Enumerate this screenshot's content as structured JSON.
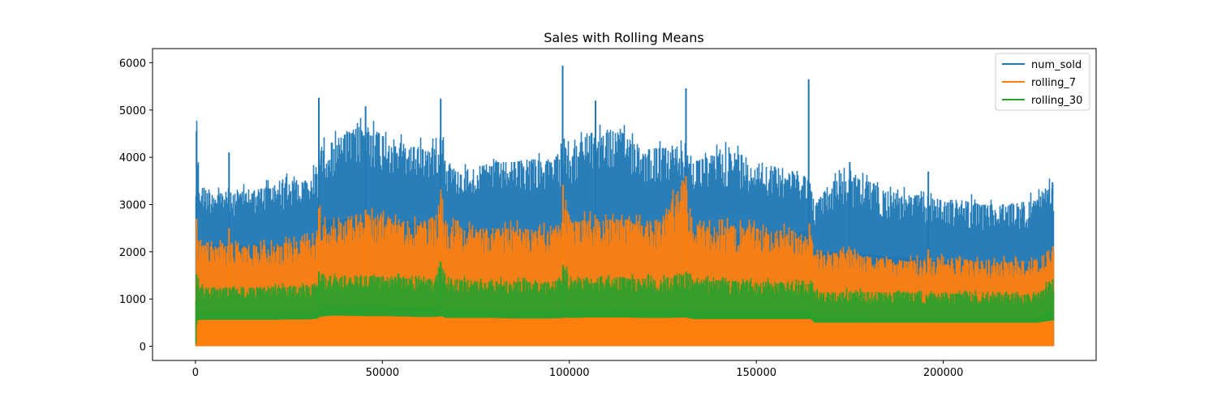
{
  "chart_data": {
    "type": "line",
    "title": "Sales with Rolling Means",
    "xlabel": "",
    "ylabel": "",
    "xlim": [
      -11470,
      240870
    ],
    "ylim": [
      -300,
      6300
    ],
    "xticks": [
      0,
      50000,
      100000,
      150000,
      200000
    ],
    "xtick_labels": [
      "0",
      "50000",
      "100000",
      "150000",
      "200000"
    ],
    "yticks": [
      0,
      1000,
      2000,
      3000,
      4000,
      5000,
      6000
    ],
    "ytick_labels": [
      "0",
      "1000",
      "2000",
      "3000",
      "4000",
      "5000",
      "6000"
    ],
    "grid": false,
    "legend_position": "top-right",
    "x_range": [
      0,
      229400
    ],
    "series": [
      {
        "name": "num_sold",
        "color": "#1f77b4",
        "envelope": {
          "x": [
            0,
            300,
            1000,
            5000,
            10000,
            15000,
            20000,
            25000,
            30000,
            32000,
            32900,
            33000,
            36000,
            40000,
            45000,
            50000,
            55000,
            60000,
            64000,
            65600,
            67000,
            70000,
            75000,
            80000,
            85000,
            90000,
            95000,
            98200,
            98500,
            100000,
            105000,
            110000,
            115000,
            120000,
            125000,
            131000,
            133000,
            140000,
            145000,
            150000,
            155000,
            160000,
            164000,
            164400,
            165500,
            170000,
            175000,
            180000,
            185000,
            190000,
            195000,
            200000,
            205000,
            210000,
            215000,
            220000,
            225000,
            229400
          ],
          "min": [
            0,
            0,
            0,
            0,
            0,
            0,
            0,
            0,
            0,
            0,
            0,
            0,
            0,
            0,
            0,
            0,
            0,
            0,
            0,
            0,
            0,
            0,
            0,
            0,
            0,
            0,
            0,
            0,
            0,
            0,
            0,
            0,
            0,
            0,
            0,
            0,
            0,
            0,
            0,
            0,
            0,
            0,
            0,
            0,
            0,
            0,
            0,
            0,
            0,
            0,
            0,
            0,
            0,
            0,
            0,
            0,
            0,
            0
          ],
          "low": [
            0,
            2300,
            2200,
            2150,
            2150,
            2150,
            2150,
            2150,
            2150,
            2200,
            2250,
            2600,
            2700,
            2700,
            2700,
            2650,
            2600,
            2600,
            2650,
            2700,
            2500,
            2500,
            2500,
            2450,
            2400,
            2400,
            2400,
            2450,
            2500,
            2500,
            2550,
            2550,
            2500,
            2500,
            2500,
            2600,
            2400,
            2450,
            2400,
            2400,
            2400,
            2400,
            2450,
            2500,
            2000,
            2000,
            2000,
            1950,
            1900,
            1900,
            1850,
            1800,
            1800,
            1780,
            1760,
            1750,
            1750,
            2000
          ],
          "high": [
            3900,
            4550,
            3400,
            3300,
            3250,
            3300,
            3400,
            3500,
            3500,
            3700,
            3900,
            4200,
            4300,
            4500,
            4700,
            4500,
            4300,
            4200,
            4200,
            4600,
            3900,
            3700,
            3800,
            3900,
            3900,
            4000,
            3900,
            4200,
            4700,
            4100,
            4500,
            4600,
            4500,
            4200,
            4200,
            4200,
            3900,
            4100,
            4100,
            3900,
            3800,
            3700,
            3600,
            3400,
            3000,
            3500,
            3600,
            3500,
            3300,
            3200,
            3200,
            3100,
            3100,
            3000,
            3000,
            3050,
            3100,
            3450
          ],
          "peaks": [
            [
              300,
              4550
            ],
            [
              9000,
              4100
            ],
            [
              33000,
              5260
            ],
            [
              45500,
              5080
            ],
            [
              65600,
              5240
            ],
            [
              98200,
              5940
            ],
            [
              107000,
              5200
            ],
            [
              131200,
              5460
            ],
            [
              164000,
              5650
            ],
            [
              175000,
              3900
            ],
            [
              196000,
              3700
            ],
            [
              229200,
              3470
            ]
          ]
        }
      },
      {
        "name": "rolling_7",
        "color": "#ff7f0e",
        "envelope": {
          "x": [
            0,
            300,
            1000,
            5000,
            10000,
            15000,
            20000,
            25000,
            30000,
            32000,
            32900,
            33000,
            36000,
            40000,
            45000,
            50000,
            55000,
            60000,
            64000,
            65600,
            67000,
            70000,
            75000,
            80000,
            85000,
            90000,
            95000,
            98200,
            98500,
            100000,
            105000,
            110000,
            115000,
            120000,
            125000,
            131000,
            133000,
            140000,
            145000,
            150000,
            155000,
            160000,
            164000,
            164400,
            165500,
            170000,
            175000,
            180000,
            185000,
            190000,
            195000,
            200000,
            205000,
            210000,
            215000,
            220000,
            225000,
            229400
          ],
          "min": [
            0,
            0,
            0,
            0,
            0,
            0,
            0,
            0,
            0,
            0,
            0,
            0,
            0,
            0,
            0,
            0,
            0,
            0,
            0,
            0,
            0,
            0,
            0,
            0,
            0,
            0,
            0,
            0,
            0,
            0,
            0,
            0,
            0,
            0,
            0,
            0,
            0,
            0,
            0,
            0,
            0,
            0,
            0,
            0,
            0,
            0,
            0,
            0,
            0,
            0,
            0,
            0,
            0,
            0,
            0,
            0,
            0,
            0
          ],
          "low": [
            0,
            1200,
            1180,
            1150,
            1150,
            1150,
            1150,
            1150,
            1150,
            1150,
            1150,
            1400,
            1450,
            1450,
            1450,
            1400,
            1400,
            1400,
            1400,
            1450,
            1350,
            1350,
            1350,
            1300,
            1300,
            1300,
            1300,
            1350,
            1400,
            1350,
            1400,
            1400,
            1400,
            1350,
            1350,
            1400,
            1300,
            1300,
            1300,
            1300,
            1300,
            1300,
            1300,
            1350,
            1100,
            1100,
            1080,
            1060,
            1050,
            1050,
            1030,
            1000,
            1000,
            1000,
            980,
            980,
            980,
            1300
          ],
          "high": [
            1500,
            2700,
            2150,
            2100,
            2150,
            2150,
            2150,
            2200,
            2250,
            2300,
            2400,
            2900,
            2700,
            2750,
            2800,
            2750,
            2650,
            2650,
            2700,
            3200,
            2600,
            2550,
            2500,
            2500,
            2500,
            2500,
            2500,
            2600,
            3420,
            2600,
            2700,
            2700,
            2700,
            2650,
            2700,
            3600,
            2550,
            2550,
            2550,
            2500,
            2450,
            2450,
            2400,
            2400,
            1950,
            1950,
            2050,
            1900,
            1850,
            1800,
            1850,
            1900,
            1850,
            1800,
            1800,
            1800,
            1850,
            2120
          ],
          "peaks": [
            [
              300,
              2700
            ],
            [
              9000,
              2500
            ],
            [
              33000,
              2920
            ],
            [
              45500,
              2890
            ],
            [
              65600,
              3200
            ],
            [
              98300,
              3420
            ],
            [
              131200,
              3600
            ],
            [
              164200,
              2600
            ],
            [
              196000,
              2050
            ],
            [
              229300,
              2120
            ]
          ]
        }
      },
      {
        "name": "rolling_30",
        "color": "#2ca02c",
        "envelope": {
          "x": [
            0,
            300,
            1000,
            5000,
            10000,
            15000,
            20000,
            25000,
            30000,
            32000,
            32900,
            33000,
            36000,
            40000,
            45000,
            50000,
            55000,
            60000,
            64000,
            65600,
            67000,
            70000,
            75000,
            80000,
            85000,
            90000,
            95000,
            98200,
            98500,
            100000,
            105000,
            110000,
            115000,
            120000,
            125000,
            131000,
            133000,
            140000,
            145000,
            150000,
            155000,
            160000,
            164000,
            164400,
            165500,
            170000,
            175000,
            180000,
            185000,
            190000,
            195000,
            200000,
            205000,
            210000,
            215000,
            220000,
            225000,
            229400
          ],
          "min": [
            0,
            550,
            560,
            560,
            560,
            560,
            560,
            570,
            570,
            580,
            600,
            620,
            650,
            650,
            640,
            640,
            630,
            620,
            620,
            640,
            600,
            600,
            600,
            600,
            590,
            590,
            590,
            600,
            610,
            600,
            610,
            610,
            610,
            600,
            600,
            610,
            580,
            580,
            580,
            580,
            580,
            580,
            580,
            590,
            500,
            500,
            500,
            500,
            500,
            500,
            500,
            500,
            500,
            500,
            500,
            500,
            500,
            550
          ],
          "low": [
            0,
            700,
            700,
            700,
            700,
            700,
            700,
            700,
            700,
            710,
            720,
            800,
            850,
            850,
            850,
            840,
            830,
            820,
            820,
            850,
            780,
            780,
            770,
            760,
            760,
            760,
            760,
            770,
            800,
            780,
            790,
            790,
            780,
            770,
            770,
            790,
            740,
            740,
            740,
            740,
            740,
            740,
            740,
            760,
            630,
            630,
            630,
            620,
            620,
            610,
            610,
            600,
            600,
            600,
            600,
            600,
            600,
            800
          ],
          "high": [
            1000,
            1520,
            1250,
            1250,
            1250,
            1250,
            1250,
            1280,
            1300,
            1310,
            1320,
            1580,
            1450,
            1480,
            1500,
            1470,
            1450,
            1430,
            1450,
            1780,
            1420,
            1400,
            1400,
            1380,
            1380,
            1370,
            1370,
            1400,
            1720,
            1420,
            1450,
            1470,
            1450,
            1430,
            1430,
            1580,
            1400,
            1400,
            1380,
            1370,
            1360,
            1350,
            1350,
            1400,
            1150,
            1150,
            1180,
            1150,
            1140,
            1130,
            1130,
            1130,
            1120,
            1110,
            1100,
            1100,
            1120,
            1420
          ],
          "peaks": [
            [
              300,
              1520
            ],
            [
              33000,
              1580
            ],
            [
              65600,
              1780
            ],
            [
              98300,
              1720
            ],
            [
              131200,
              1580
            ],
            [
              229300,
              1420
            ]
          ]
        }
      }
    ]
  }
}
